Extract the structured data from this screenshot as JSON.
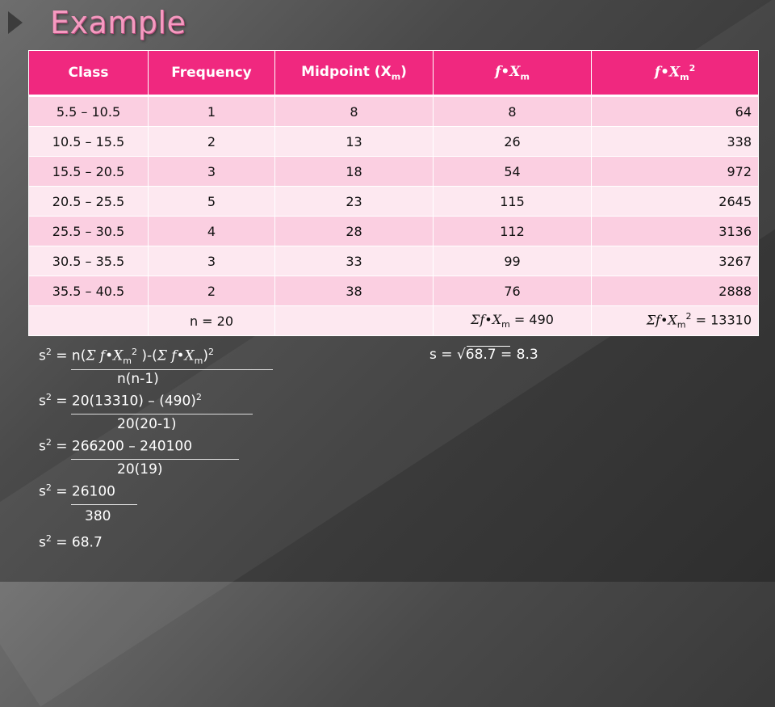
{
  "slide": {
    "title": "Example"
  },
  "table": {
    "headers": {
      "class": "Class",
      "frequency": "Frequency",
      "midpoint": "Midpoint (X",
      "midpoint_sub": "m",
      "midpoint_close": ")",
      "fxm_f": "f",
      "fxm_dot": "•",
      "fxm_x": "X",
      "fxm_sub": "m",
      "fxm2_f": "f",
      "fxm2_dot": "•",
      "fxm2_x": "X",
      "fxm2_sub": "m",
      "fxm2_sup": "2"
    },
    "rows": [
      {
        "class": "5.5 – 10.5",
        "frequency": "1",
        "midpoint": "8",
        "fxm": "8",
        "fxm2": "64"
      },
      {
        "class": "10.5 – 15.5",
        "frequency": "2",
        "midpoint": "13",
        "fxm": "26",
        "fxm2": "338"
      },
      {
        "class": "15.5 – 20.5",
        "frequency": "3",
        "midpoint": "18",
        "fxm": "54",
        "fxm2": "972"
      },
      {
        "class": "20.5 – 25.5",
        "frequency": "5",
        "midpoint": "23",
        "fxm": "115",
        "fxm2": "2645"
      },
      {
        "class": "25.5 – 30.5",
        "frequency": "4",
        "midpoint": "28",
        "fxm": "112",
        "fxm2": "3136"
      },
      {
        "class": "30.5 – 35.5",
        "frequency": "3",
        "midpoint": "33",
        "fxm": "99",
        "fxm2": "3267"
      },
      {
        "class": "35.5 – 40.5",
        "frequency": "2",
        "midpoint": "38",
        "fxm": "76",
        "fxm2": "2888"
      }
    ],
    "totals": {
      "n": "n = 20",
      "sum_fxm_sigma": "Σ",
      "sum_fxm_f": "f",
      "sum_fxm_dot": "•",
      "sum_fxm_x": "X",
      "sum_fxm_sub": "m",
      "sum_fxm_value": " = 490",
      "sum_fxm2_sigma": "Σ",
      "sum_fxm2_f": "f",
      "sum_fxm2_dot": "•",
      "sum_fxm2_x": "X",
      "sum_fxm2_sub": "m",
      "sum_fxm2_sup": "2",
      "sum_fxm2_value": " = 13310"
    }
  },
  "calc": {
    "s": "s",
    "sq": "2",
    "eq": " = ",
    "line1_a": "n(",
    "line1_sigma1": "Σ",
    "line1_f1": "f",
    "line1_dot1": "•",
    "line1_x1": "X",
    "line1_sub1": "m",
    "line1_sup1": "2",
    "line1_b": " )-(",
    "line1_sigma2": "Σ",
    "line1_f2": "f",
    "line1_dot2": "•",
    "line1_x2": "X",
    "line1_sub2": "m",
    "line1_c": ")",
    "line1_sup2": "2",
    "den1": "n(n-1)",
    "line2_num_a": "20(13310) – (490)",
    "line2_num_sup": "2",
    "den2": "20(20-1)",
    "line3_num": "266200 – 240100",
    "den3": "20(19)",
    "line4_num": "26100",
    "den4": "380",
    "result": "68.7",
    "sd_label": "s = ",
    "sd_root": "√",
    "sd_value": "68.7",
    "sd_result": " = 8.3"
  }
}
